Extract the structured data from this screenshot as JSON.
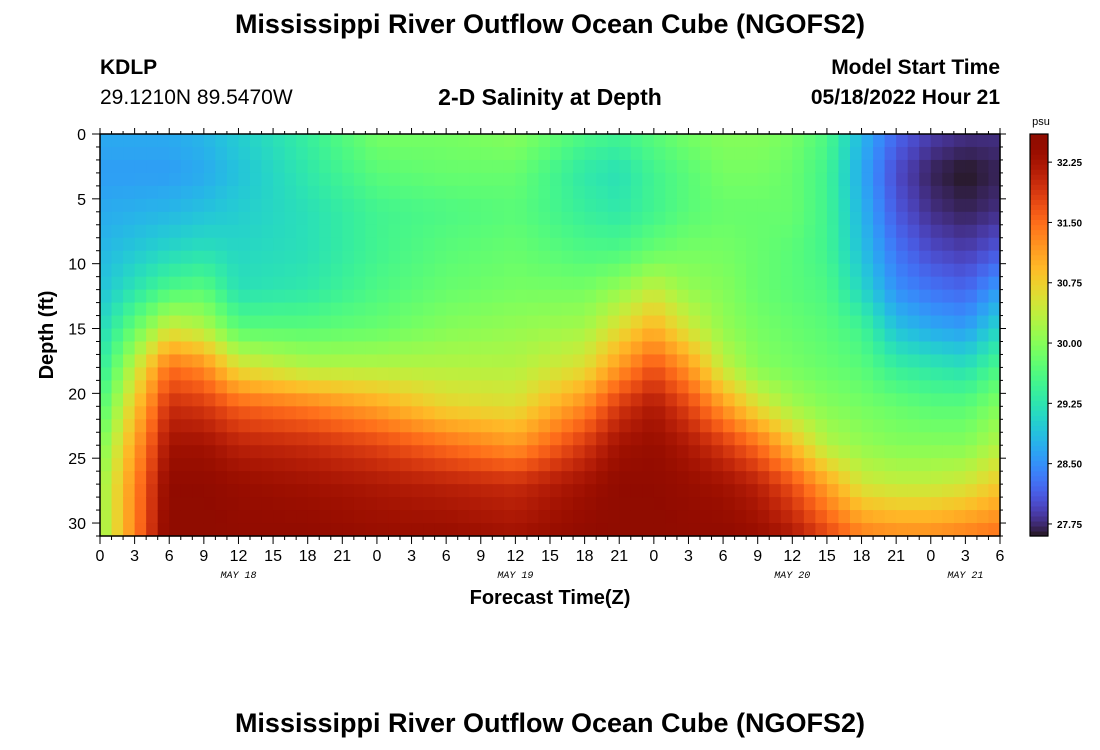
{
  "header": {
    "title": "Mississippi River Outflow Ocean Cube (NGOFS2)",
    "station_id": "KDLP",
    "station_coords": "29.1210N  89.5470W",
    "subtitle": "2-D Salinity at Depth",
    "model_start_label": "Model Start Time",
    "model_start_value": "05/18/2022 Hour 21"
  },
  "footer": {
    "title": "Mississippi River Outflow Ocean Cube (NGOFS2)"
  },
  "colors": {
    "background": "#ffffff",
    "axis": "#000000"
  },
  "chart_data": {
    "type": "heatmap",
    "title": "2-D Salinity at Depth",
    "xlabel": "Forecast Time(Z)",
    "ylabel": "Depth (ft)",
    "x_tick_labels": [
      "0",
      "3",
      "6",
      "9",
      "12",
      "15",
      "18",
      "21",
      "0",
      "3",
      "6",
      "9",
      "12",
      "15",
      "18",
      "21",
      "0",
      "3",
      "6",
      "9",
      "12",
      "15",
      "18",
      "21",
      "0",
      "3",
      "6"
    ],
    "date_labels": [
      {
        "label": "MAY 18",
        "hours_since_start": 12
      },
      {
        "label": "MAY 19",
        "hours_since_start": 36
      },
      {
        "label": "MAY 20",
        "hours_since_start": 60
      },
      {
        "label": "MAY 21",
        "hours_since_start": 75
      }
    ],
    "x_range_hours": [
      0,
      78
    ],
    "y_ticks": [
      0,
      5,
      10,
      15,
      20,
      25,
      30
    ],
    "ylim": [
      0,
      31
    ],
    "y_inverted": true,
    "colorbar": {
      "unit": "psu",
      "range": [
        27.6,
        32.6
      ],
      "tick_values": [
        32.25,
        31.5,
        30.75,
        30.0,
        29.25,
        28.5,
        27.75
      ],
      "tick_labels": [
        "32.25",
        "31.50",
        "30.75",
        "30.00",
        "29.25",
        "28.50",
        "27.75"
      ],
      "colormap": "turbo"
    },
    "profile_hours": [
      0,
      6,
      9,
      12,
      18,
      24,
      30,
      36,
      42,
      45,
      48,
      51,
      54,
      57,
      60,
      63,
      66,
      69,
      72,
      75,
      78
    ],
    "profile_depths": [
      0,
      3,
      6,
      9,
      12,
      15,
      18,
      21,
      24,
      27,
      31
    ],
    "salinity_psu": [
      [
        28.7,
        28.6,
        28.7,
        28.8,
        28.9,
        29.1,
        29.3,
        29.6,
        29.9,
        30.1,
        30.1
      ],
      [
        28.7,
        28.6,
        28.8,
        29.1,
        29.6,
        30.5,
        31.5,
        32.0,
        32.3,
        32.5,
        32.6
      ],
      [
        28.8,
        28.7,
        28.9,
        29.2,
        29.7,
        30.3,
        31.3,
        31.9,
        32.3,
        32.5,
        32.6
      ],
      [
        29.0,
        28.9,
        29.0,
        29.1,
        29.2,
        29.7,
        30.6,
        31.6,
        32.1,
        32.4,
        32.5
      ],
      [
        29.4,
        29.3,
        29.2,
        29.2,
        29.3,
        29.7,
        30.3,
        31.4,
        32.0,
        32.3,
        32.5
      ],
      [
        29.9,
        29.7,
        29.5,
        29.5,
        29.6,
        29.8,
        30.3,
        31.1,
        31.8,
        32.2,
        32.4
      ],
      [
        29.9,
        29.8,
        29.6,
        29.7,
        29.8,
        30.0,
        30.3,
        30.7,
        31.5,
        32.1,
        32.4
      ],
      [
        30.0,
        29.8,
        29.7,
        29.8,
        29.9,
        30.1,
        30.3,
        30.6,
        31.2,
        32.0,
        32.3
      ],
      [
        29.6,
        29.3,
        29.4,
        29.6,
        29.9,
        30.2,
        30.6,
        31.3,
        31.9,
        32.3,
        32.5
      ],
      [
        29.5,
        29.2,
        29.3,
        29.6,
        30.1,
        30.6,
        31.2,
        31.9,
        32.3,
        32.5,
        32.6
      ],
      [
        29.7,
        29.5,
        29.5,
        29.8,
        30.4,
        31.0,
        31.7,
        32.2,
        32.4,
        32.5,
        32.6
      ],
      [
        29.9,
        29.7,
        29.7,
        29.9,
        30.1,
        30.5,
        31.2,
        31.8,
        32.2,
        32.4,
        32.5
      ],
      [
        30.0,
        29.9,
        29.8,
        29.9,
        30.0,
        30.1,
        30.4,
        31.2,
        31.9,
        32.3,
        32.5
      ],
      [
        30.0,
        29.9,
        29.8,
        29.8,
        29.8,
        29.9,
        30.0,
        30.6,
        31.5,
        32.1,
        32.4
      ],
      [
        29.9,
        29.8,
        29.8,
        29.7,
        29.7,
        29.8,
        29.9,
        30.2,
        30.9,
        31.7,
        32.2
      ],
      [
        29.6,
        29.5,
        29.5,
        29.5,
        29.6,
        29.7,
        29.8,
        30.0,
        30.3,
        31.1,
        31.8
      ],
      [
        28.8,
        28.7,
        28.8,
        28.9,
        29.1,
        29.5,
        29.7,
        29.9,
        30.1,
        30.5,
        31.4
      ],
      [
        28.2,
        28.0,
        28.1,
        28.3,
        28.5,
        28.9,
        29.4,
        29.8,
        30.0,
        30.4,
        31.3
      ],
      [
        27.9,
        27.7,
        27.8,
        28.0,
        28.3,
        28.7,
        29.3,
        29.7,
        30.0,
        30.4,
        31.3
      ],
      [
        27.8,
        27.6,
        27.7,
        27.9,
        28.2,
        28.6,
        29.2,
        29.7,
        30.0,
        30.5,
        31.4
      ],
      [
        27.8,
        27.7,
        27.8,
        28.1,
        28.6,
        29.1,
        29.6,
        30.0,
        30.3,
        30.8,
        31.5
      ]
    ]
  }
}
